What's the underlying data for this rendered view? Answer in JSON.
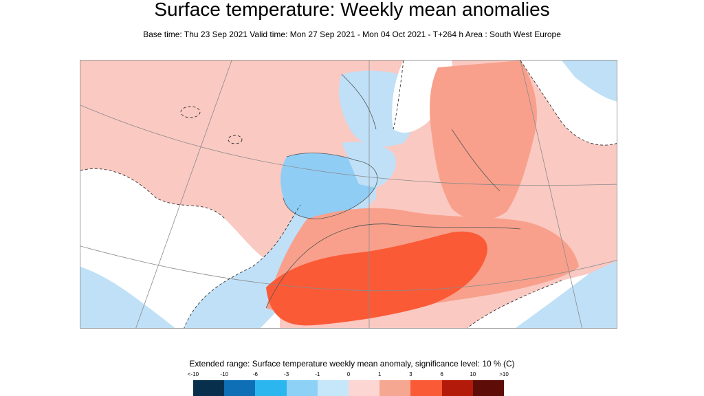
{
  "header": {
    "title": "Surface temperature: Weekly mean anomalies",
    "subtitle": "Base time: Thu 23 Sep 2021 Valid time: Mon 27 Sep 2021 - Mon 04 Oct 2021 - T+264 h Area : South West Europe"
  },
  "map": {
    "region_name": "South West Europe",
    "colors": {
      "land_water_bg": "#fac9c2",
      "light_blue": "#bfe0f7",
      "mid_blue": "#8fcdf5",
      "salmon": "#f8a08c",
      "red_orange": "#fb5a37",
      "white": "#ffffff"
    }
  },
  "legend": {
    "title": "Extended range: Surface temperature weekly mean anomaly, significance level: 10 % (C)",
    "ticks": [
      "<-10",
      "-10",
      "-6",
      "-3",
      "-1",
      "0",
      "1",
      "3",
      "6",
      "10",
      ">10"
    ],
    "colors": [
      "#08304d",
      "#0e6fb7",
      "#2bb6f0",
      "#8ed1f7",
      "#c6e6fa",
      "#fcd6d2",
      "#f6a792",
      "#fb5a37",
      "#b31a0a",
      "#5e0c07"
    ]
  }
}
